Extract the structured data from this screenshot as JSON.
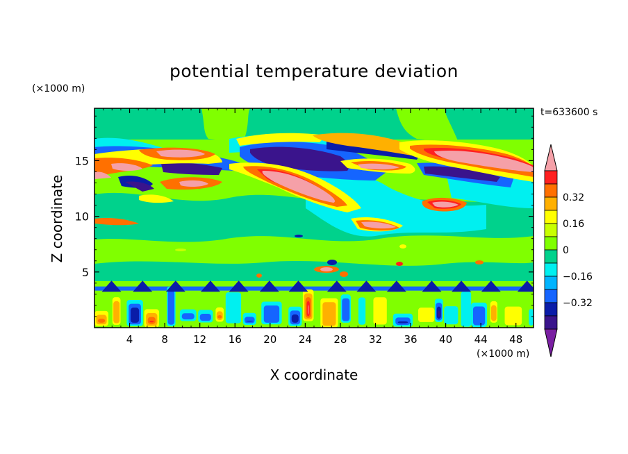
{
  "chart_data": {
    "type": "heatmap",
    "title": "potential temperature deviation",
    "xlabel": "X coordinate",
    "ylabel": "Z coordinate",
    "x_unit": "(×1000 m)",
    "y_unit": "(×1000 m)",
    "time_label": "t=633600 s",
    "xlim": [
      0,
      50
    ],
    "ylim": [
      0,
      19.7
    ],
    "x_ticks": [
      4,
      8,
      12,
      16,
      20,
      24,
      28,
      32,
      36,
      40,
      44,
      48
    ],
    "y_ticks": [
      5,
      10,
      15
    ],
    "colorbar": {
      "levels": [
        -0.48,
        -0.4,
        -0.32,
        -0.24,
        -0.16,
        -0.08,
        0,
        0.08,
        0.16,
        0.24,
        0.32,
        0.4,
        0.48
      ],
      "labels": [
        "0.32",
        "0.16",
        "0",
        "−0.16",
        "−0.32"
      ],
      "label_values": [
        0.32,
        0.16,
        0,
        -0.16,
        -0.32
      ],
      "colors": [
        "#7a1fa2",
        "#3a148c",
        "#0a1ca8",
        "#1565ff",
        "#00b4ff",
        "#00f0f0",
        "#00d28c",
        "#80ff00",
        "#c8ff00",
        "#ffff00",
        "#ffb000",
        "#ff7000",
        "#ff2020",
        "#f5a0a8"
      ]
    },
    "features": [
      {
        "kind": "warm",
        "level": "high",
        "x": [
          0,
          8
        ],
        "z": [
          14.5,
          15.5
        ]
      },
      {
        "kind": "warm",
        "level": "high",
        "x": [
          5,
          14
        ],
        "z": [
          15.5,
          16.5
        ]
      },
      {
        "kind": "cold",
        "level": "high",
        "x": [
          10,
          16
        ],
        "z": [
          14,
          15
        ]
      },
      {
        "kind": "cold",
        "level": "high",
        "x": [
          18,
          28
        ],
        "z": [
          14,
          16.5
        ]
      },
      {
        "kind": "warm",
        "level": "high",
        "x": [
          18,
          28
        ],
        "z": [
          11.5,
          14
        ]
      },
      {
        "kind": "cold",
        "level": "high",
        "x": [
          27,
          35
        ],
        "z": [
          15.5,
          17
        ]
      },
      {
        "kind": "warm",
        "level": "high",
        "x": [
          37,
          50
        ],
        "z": [
          14.5,
          16.5
        ]
      },
      {
        "kind": "cold",
        "level": "high",
        "x": [
          37,
          44
        ],
        "z": [
          13.5,
          14.8
        ]
      },
      {
        "kind": "warm",
        "level": "high",
        "x": [
          38,
          42
        ],
        "z": [
          10.5,
          11.5
        ]
      },
      {
        "kind": "warm",
        "level": "mid",
        "x": [
          29,
          34
        ],
        "z": [
          8.5,
          9.5
        ]
      },
      {
        "kind": "cold",
        "level": "mid",
        "x": [
          20,
          31
        ],
        "z": [
          12,
          14
        ]
      },
      {
        "kind": "mixed",
        "level": "low",
        "x": [
          0,
          50
        ],
        "z": [
          0,
          4
        ]
      }
    ]
  }
}
